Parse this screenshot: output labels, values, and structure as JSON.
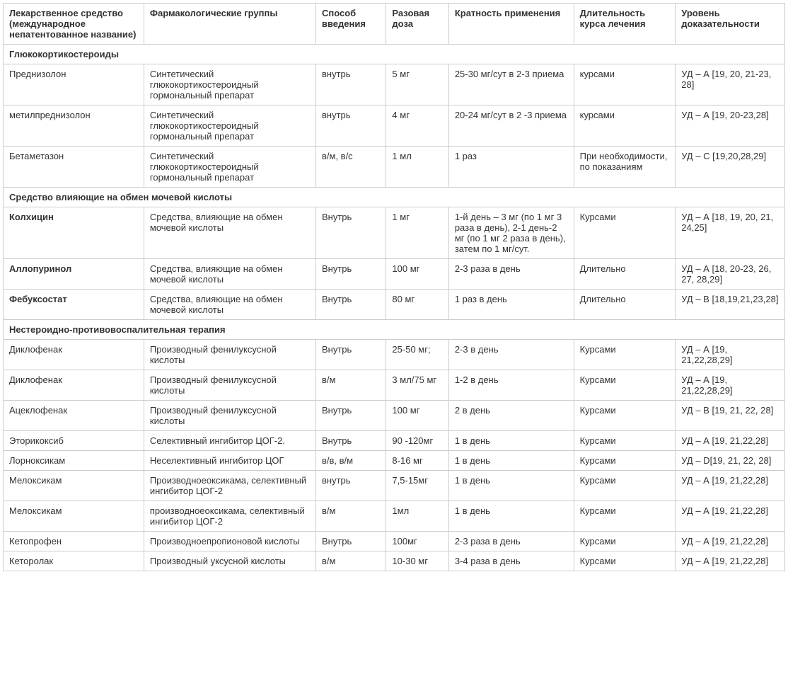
{
  "table": {
    "columns": [
      "Лекарственное средство (международное непатентованное название)",
      "Фармакологические группы",
      "Способ введения",
      "Разовая доза",
      "Кратность применения",
      "Длительность курса лечения",
      "Уровень доказательности"
    ],
    "column_widths": [
      "18%",
      "22%",
      "9%",
      "8%",
      "16%",
      "13%",
      "14%"
    ],
    "sections": [
      {
        "header": "Глюкокортикостероиды",
        "rows": [
          {
            "bold": false,
            "cells": [
              "Преднизолон",
              "Синтетический глюкокортикостероидный гормональный препарат",
              "внутрь",
              "5 мг",
              "25-30 мг/сут в 2-3 приема",
              "курсами",
              "УД – А [19, 20, 21-23, 28]"
            ]
          },
          {
            "bold": false,
            "cells": [
              "метилпреднизолон",
              "Синтетический глюкокортикостероидный гормональный препарат",
              "внутрь",
              "4 мг",
              "20-24 мг/сут в 2 -3 приема",
              "курсами",
              "УД – А [19, 20-23,28]"
            ]
          },
          {
            "bold": false,
            "cells": [
              "Бетаметазон",
              "Синтетический глюкокортикостероидный гормональный препарат",
              "в/м, в/с",
              "1 мл",
              "1 раз",
              "При необходимости,  по показаниям",
              "УД – С [19,20,28,29]"
            ]
          }
        ]
      },
      {
        "header": "Средство влияющие на обмен мочевой кислоты",
        "rows": [
          {
            "bold": true,
            "cells": [
              "Колхицин",
              "Средства, влияющие на обмен мочевой кислоты",
              "Внутрь",
              "1 мг",
              "1-й день – 3 мг (по 1 мг 3 раза в день), 2-1 день-2 мг (по 1 мг 2 раза в день), затем по 1 мг/сут.",
              "Курсами",
              "УД – А [18, 19, 20, 21, 24,25]"
            ]
          },
          {
            "bold": true,
            "cells": [
              "Аллопуринол",
              "Средства, влияющие на обмен мочевой кислоты",
              "Внутрь",
              "100 мг",
              "2-3 раза  в день",
              "Длительно",
              "УД – А [18, 20-23, 26, 27, 28,29]"
            ]
          },
          {
            "bold": true,
            "cells": [
              "Фебуксостат",
              "Средства, влияющие на обмен мочевой кислоты",
              "Внутрь",
              " 80 мг",
              "1 раз в день",
              "Длительно",
              "УД – В [18,19,21,23,28]"
            ]
          }
        ]
      },
      {
        "header": "Нестероидно-противовоспалительная терапия",
        "rows": [
          {
            "bold": false,
            "cells": [
              "Диклофенак",
              "Производный фенилуксусной кислоты",
              "Внутрь",
              "25-50 мг;",
              "2-3 в день",
              "Курсами",
              "УД – А [19, 21,22,28,29]"
            ]
          },
          {
            "bold": false,
            "cells": [
              "Диклофенак",
              "Производный фенилуксусной кислоты",
              "в/м",
              "3 мл/75 мг",
              "1-2 в день",
              "Курсами",
              "УД – А [19, 21,22,28,29]"
            ]
          },
          {
            "bold": false,
            "cells": [
              "Ацеклофенак",
              "Производный фенилуксусной кислоты",
              "Внутрь",
              "100 мг",
              "2 в день",
              "Курсами",
              "УД – В [19, 21, 22, 28]"
            ]
          },
          {
            "bold": false,
            "cells": [
              "Эторикоксиб",
              "Селективный ингибитор ЦОГ-2.",
              "Внутрь",
              "90 -120мг",
              "1 в день",
              "Курсами",
              "УД – А [19, 21,22,28]"
            ]
          },
          {
            "bold": false,
            "cells": [
              "Лорноксикам",
              "Неселективный ингибитор ЦОГ",
              " в/в, в/м",
              "8-16 мг",
              "1 в день",
              "Курсами",
              "УД – D[19, 21, 22, 28]"
            ]
          },
          {
            "bold": false,
            "cells": [
              "Мелоксикам",
              "Производноеоксикама, селективный ингибитор ЦОГ-2",
              " внутрь",
              "7,5-15мг",
              "1 в день",
              "Курсами",
              "УД – А [19, 21,22,28]"
            ]
          },
          {
            "bold": false,
            "cells": [
              "Мелоксикам",
              "производноеоксикама, селективный ингибитор ЦОГ-2",
              "в/м",
              "1мл",
              "1 в день",
              "Курсами",
              "УД – А [19, 21,22,28]"
            ]
          },
          {
            "bold": false,
            "cells": [
              "Кетопрофен",
              "Производноепропионовой кислоты",
              "Внутрь",
              "100мг",
              "2-3 раза  в день",
              "Курсами",
              "УД – А [19, 21,22,28]"
            ]
          },
          {
            "bold": false,
            "cells": [
              "Кеторолак",
              "Производный уксусной кислоты",
              " в/м",
              "10-30 мг",
              "3-4 раза  в день",
              "Курсами",
              "УД – А [19, 21,22,28]"
            ]
          }
        ]
      }
    ],
    "styling": {
      "border_color": "#cccccc",
      "text_color": "#333333",
      "background_color": "#ffffff",
      "font_size": 13,
      "font_family": "Arial, Helvetica, sans-serif",
      "cell_padding": "6px 8px"
    }
  }
}
